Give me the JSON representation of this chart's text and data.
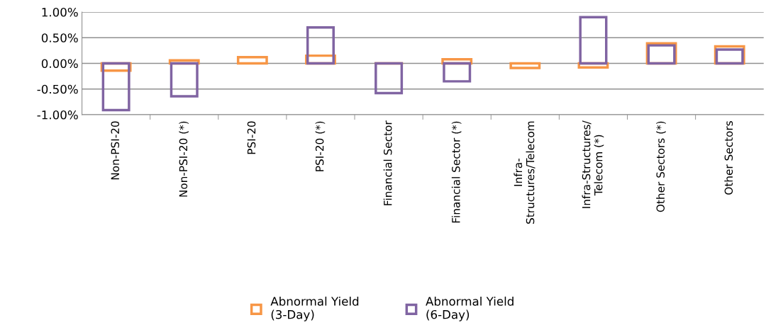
{
  "chart_data": {
    "type": "bar",
    "categories": [
      "Non-PSI-20",
      "Non-PSI-20 (*)",
      "PSI-20",
      "PSI-20 (*)",
      "Financial Sector",
      "Financial Sector (*)",
      "Infra-\nStructures/Telecom",
      "Infra-Structures/\nTelecom (*)",
      "Other Sectors (*)",
      "Other Sectors"
    ],
    "series": [
      {
        "name": "Abnormal Yield\n(3-Day)",
        "color": "#f79646",
        "values": [
          -0.14,
          0.06,
          0.12,
          0.15,
          0.0,
          0.08,
          -0.09,
          -0.08,
          0.39,
          0.33
        ]
      },
      {
        "name": "Abnormal Yield\n(6-Day)",
        "color": "#8064a2",
        "values": [
          -0.91,
          -0.64,
          null,
          0.7,
          -0.58,
          -0.35,
          null,
          0.9,
          0.35,
          0.27
        ]
      }
    ],
    "ylim": [
      -1.0,
      1.0
    ],
    "yticks": [
      {
        "value": -1.0,
        "label": "-1.00%"
      },
      {
        "value": -0.5,
        "label": "-0.50%"
      },
      {
        "value": 0,
        "label": "0.00%"
      },
      {
        "value": 0.5,
        "label": "0.50%"
      },
      {
        "value": 1.0,
        "label": "1.00%"
      }
    ],
    "grid": "y",
    "legend": "bottom"
  }
}
